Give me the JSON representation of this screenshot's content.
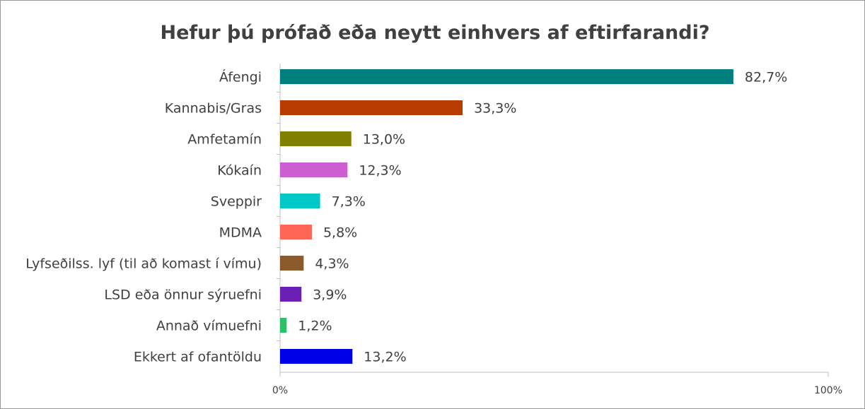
{
  "chart_data": {
    "type": "bar",
    "orientation": "horizontal",
    "title": "Hefur þú prófað eða neytt einhvers af eftirfarandi?",
    "categories": [
      "Áfengi",
      "Kannabis/Gras",
      "Amfetamín",
      "Kókaín",
      "Sveppir",
      "MDMA",
      "Lyfseðilss. lyf (til að komast í vímu)",
      "LSD eða önnur sýruefni",
      "Annað vímuefni",
      "Ekkert af ofantöldu"
    ],
    "values": [
      82.7,
      33.3,
      13.0,
      12.3,
      7.3,
      5.8,
      4.3,
      3.9,
      1.2,
      13.2
    ],
    "value_labels": [
      "82,7%",
      "33,3%",
      "13,0%",
      "12,3%",
      "7,3%",
      "5,8%",
      "4,3%",
      "3,9%",
      "1,2%",
      "13,2%"
    ],
    "colors": [
      "#007f7f",
      "#b83c00",
      "#808000",
      "#cc5fd0",
      "#00c8c8",
      "#ff6655",
      "#8b5a2b",
      "#6a1fb5",
      "#2ebf6a",
      "#0000e8"
    ],
    "xlim": [
      0,
      100
    ],
    "xticks": [
      {
        "value": 0,
        "label": "0%"
      },
      {
        "value": 100,
        "label": "100%"
      }
    ],
    "grid": false,
    "legend": "none"
  }
}
